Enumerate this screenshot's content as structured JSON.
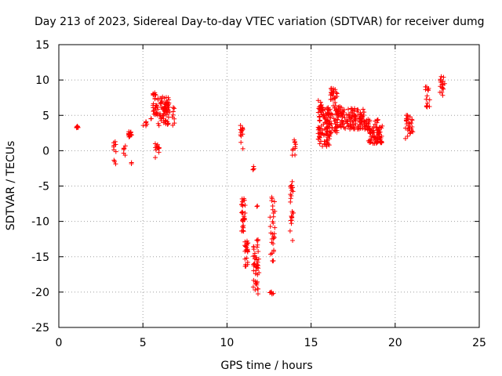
{
  "chart_data": {
    "type": "scatter",
    "title": "Day 213 of 2023, Sidereal Day-to-day VTEC variation (SDTVAR) for receiver dumg",
    "xlabel": "GPS time / hours",
    "ylabel": "SDTVAR / TECUs",
    "xlim": [
      0,
      25
    ],
    "ylim": [
      -25,
      15
    ],
    "xticks": [
      0,
      5,
      10,
      15,
      20,
      25
    ],
    "yticks": [
      -25,
      -20,
      -15,
      -10,
      -5,
      0,
      5,
      10,
      15
    ],
    "grid": true,
    "marker": "+",
    "colors": {
      "series": "#ff0000",
      "axis": "#000000",
      "grid": "#a0a0a0"
    },
    "series": [
      {
        "name": "SDTVAR",
        "clusters": [
          {
            "x": [
              1.05,
              1.15
            ],
            "y": [
              3.0,
              3.5
            ],
            "n": 6
          },
          {
            "x": [
              3.25,
              3.4
            ],
            "y": [
              -2.4,
              1.4
            ],
            "n": 10
          },
          {
            "x": [
              3.85,
              4.0
            ],
            "y": [
              -0.8,
              0.8
            ],
            "n": 6
          },
          {
            "x": [
              4.1,
              4.35
            ],
            "y": [
              1.6,
              2.7
            ],
            "n": 14
          },
          {
            "x": [
              4.3,
              4.45
            ],
            "y": [
              -1.9,
              -1.5
            ],
            "n": 2
          },
          {
            "x": [
              5.0,
              5.25
            ],
            "y": [
              3.5,
              4.1
            ],
            "n": 7
          },
          {
            "x": [
              5.45,
              5.5
            ],
            "y": [
              4.4,
              4.8
            ],
            "n": 2
          },
          {
            "x": [
              5.6,
              5.9
            ],
            "y": [
              5.0,
              8.4
            ],
            "n": 30
          },
          {
            "x": [
              5.65,
              6.0
            ],
            "y": [
              -1.0,
              1.3
            ],
            "n": 12
          },
          {
            "x": [
              5.9,
              6.55
            ],
            "y": [
              3.3,
              7.8
            ],
            "n": 50
          },
          {
            "x": [
              6.2,
              6.6
            ],
            "y": [
              5.0,
              6.7
            ],
            "n": 18
          },
          {
            "x": [
              6.75,
              6.9
            ],
            "y": [
              3.2,
              6.2
            ],
            "n": 8
          },
          {
            "x": [
              10.8,
              10.95
            ],
            "y": [
              0.2,
              4.0
            ],
            "n": 14
          },
          {
            "x": [
              10.85,
              11.1
            ],
            "y": [
              -11.5,
              -6.6
            ],
            "n": 30
          },
          {
            "x": [
              11.05,
              11.25
            ],
            "y": [
              -16.8,
              -12.5
            ],
            "n": 22
          },
          {
            "x": [
              11.5,
              11.65
            ],
            "y": [
              -2.9,
              -2.2
            ],
            "n": 4
          },
          {
            "x": [
              11.55,
              11.9
            ],
            "y": [
              -20.6,
              -12.3
            ],
            "n": 45
          },
          {
            "x": [
              11.75,
              11.85
            ],
            "y": [
              -8.3,
              -7.8
            ],
            "n": 2
          },
          {
            "x": [
              12.5,
              12.8
            ],
            "y": [
              -20.3,
              -19.8
            ],
            "n": 6
          },
          {
            "x": [
              12.55,
              12.85
            ],
            "y": [
              -16.5,
              -5.2
            ],
            "n": 30
          },
          {
            "x": [
              13.75,
              13.95
            ],
            "y": [
              -12.7,
              -4.0
            ],
            "n": 24
          },
          {
            "x": [
              13.85,
              14.1
            ],
            "y": [
              -1.0,
              1.8
            ],
            "n": 10
          },
          {
            "x": [
              15.4,
              15.7
            ],
            "y": [
              0.8,
              7.2
            ],
            "n": 40
          },
          {
            "x": [
              15.65,
              16.15
            ],
            "y": [
              0.6,
              6.3
            ],
            "n": 70
          },
          {
            "x": [
              16.15,
              16.55
            ],
            "y": [
              2.5,
              8.9
            ],
            "n": 50
          },
          {
            "x": [
              16.5,
              17.0
            ],
            "y": [
              3.0,
              6.3
            ],
            "n": 45
          },
          {
            "x": [
              17.0,
              18.2
            ],
            "y": [
              3.0,
              6.0
            ],
            "n": 90
          },
          {
            "x": [
              18.2,
              18.6
            ],
            "y": [
              2.4,
              4.5
            ],
            "n": 20
          },
          {
            "x": [
              18.4,
              19.25
            ],
            "y": [
              1.0,
              3.5
            ],
            "n": 70
          },
          {
            "x": [
              18.8,
              19.0
            ],
            "y": [
              3.5,
              4.5
            ],
            "n": 6
          },
          {
            "x": [
              20.6,
              21.05
            ],
            "y": [
              1.7,
              5.1
            ],
            "n": 30
          },
          {
            "x": [
              21.8,
              22.05
            ],
            "y": [
              5.8,
              9.1
            ],
            "n": 16
          },
          {
            "x": [
              22.65,
              22.95
            ],
            "y": [
              7.7,
              10.5
            ],
            "n": 16
          }
        ]
      }
    ]
  }
}
